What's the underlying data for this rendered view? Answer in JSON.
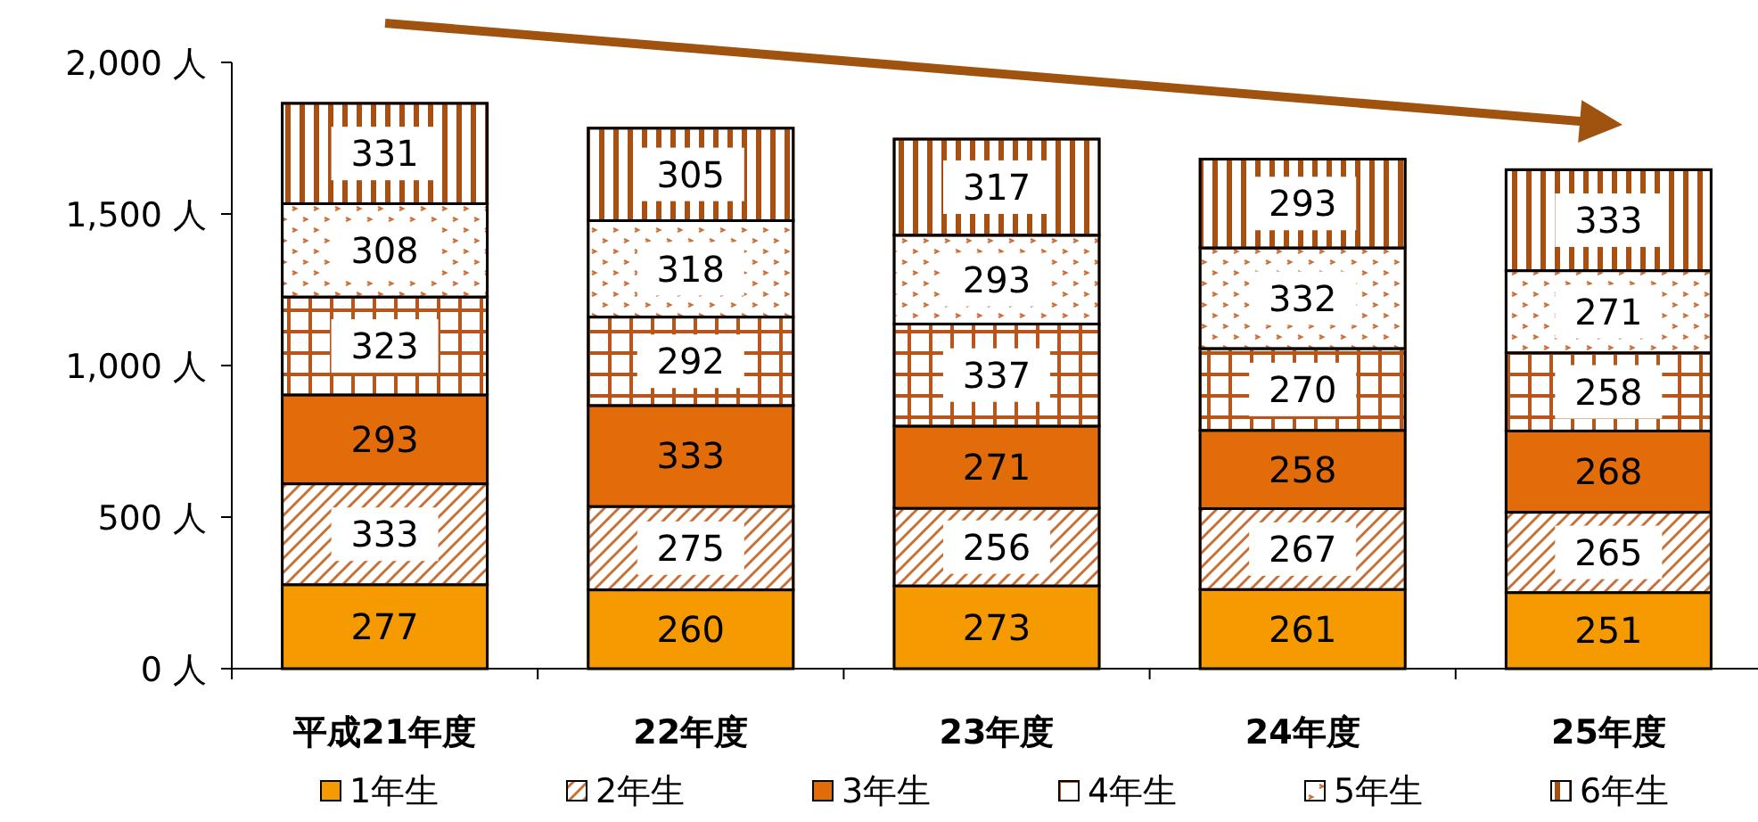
{
  "chart_data": {
    "type": "bar",
    "stacked": true,
    "data_labels": true,
    "legend": "bottom",
    "grid": false,
    "categories": [
      "平成21年度",
      "22年度",
      "23年度",
      "24年度",
      "25年度"
    ],
    "ylim": [
      0,
      2000
    ],
    "yticks": [
      {
        "value": 0,
        "label": "0 人"
      },
      {
        "value": 500,
        "label": "500 人"
      },
      {
        "value": 1000,
        "label": "1,000 人"
      },
      {
        "value": 1500,
        "label": "1,500 人"
      },
      {
        "value": 2000,
        "label": "2,000 人"
      }
    ],
    "series": [
      {
        "name": "1年生",
        "color": "#f59a00",
        "values": [
          277,
          260,
          273,
          261,
          251
        ]
      },
      {
        "name": "2年生",
        "color": "#c8703a",
        "values": [
          333,
          275,
          256,
          267,
          265
        ]
      },
      {
        "name": "3年生",
        "color": "#e36c0a",
        "values": [
          293,
          333,
          271,
          258,
          268
        ]
      },
      {
        "name": "4年生",
        "color": "#b5561a",
        "values": [
          323,
          292,
          337,
          270,
          258
        ]
      },
      {
        "name": "5年生",
        "color": "#c8703a",
        "values": [
          308,
          318,
          293,
          332,
          271
        ]
      },
      {
        "name": "6年生",
        "color": "#a84f12",
        "values": [
          331,
          305,
          317,
          293,
          333
        ]
      }
    ]
  }
}
